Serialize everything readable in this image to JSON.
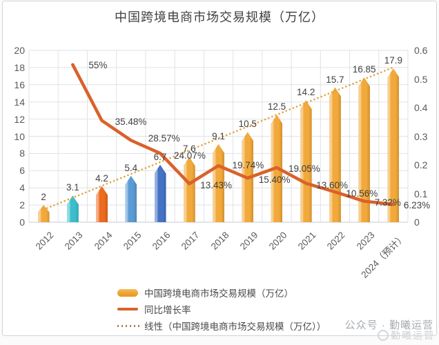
{
  "title": "中国跨境电商市场交易规模（万亿）",
  "watermark": {
    "primary": "公众号 · 勤曦运营",
    "secondary": "勤曦运营"
  },
  "colors": {
    "growth_line": "#D9622B",
    "trend_line": "#E3A23C",
    "grid": "#dee2e6",
    "axis_line": "#c3c8cd",
    "axis_text": "#595959",
    "label_text": "#3f3f3f",
    "default_bar": "#F2A93B"
  },
  "legend": [
    {
      "icon": "bar",
      "label": "中国跨境电商市场交易规模（万亿）"
    },
    {
      "icon": "line",
      "label": "同比增长率"
    },
    {
      "icon": "dotted",
      "label": "线性（中国跨境电商市场交易规模（万亿））"
    }
  ],
  "chart_data": {
    "type": "bar",
    "title": "中国跨境电商市场交易规模（万亿）",
    "categories": [
      "2012",
      "2013",
      "2014",
      "2015",
      "2016",
      "2017",
      "2018",
      "2019",
      "2020",
      "2021",
      "2022",
      "2023",
      "2024（预计）"
    ],
    "left_axis": {
      "min": 0,
      "max": 20,
      "step": 2,
      "ticks": [
        "0",
        "2",
        "4",
        "6",
        "8",
        "10",
        "12",
        "14",
        "16",
        "18",
        "20"
      ]
    },
    "right_axis": {
      "min": 0,
      "max": 0.6,
      "step": 0.1,
      "ticks": [
        "0",
        "0.1",
        "0.2",
        "0.3",
        "0.4",
        "0.5",
        "0.6"
      ]
    },
    "grid": true,
    "legend_position": "bottom-left",
    "series": [
      {
        "name": "中国跨境电商市场交易规模（万亿）",
        "type": "bar",
        "axis": "left",
        "values": [
          2,
          3.1,
          4.2,
          5.4,
          6.7,
          7.6,
          9.1,
          10.5,
          12.5,
          14.2,
          15.7,
          16.85,
          17.9
        ],
        "labels": [
          "2",
          "3.1",
          "4.2",
          "5.4",
          "6.7",
          "7.6",
          "9.1",
          "10.5",
          "12.5",
          "14.2",
          "15.7",
          "16.85",
          "17.9"
        ],
        "bar_colors": [
          "#F2A93B",
          "#3BBECB",
          "#EC6B1F",
          "#5B9BD5",
          "#4472C4",
          "#F2A93B",
          "#F2A93B",
          "#F2A93B",
          "#F2A93B",
          "#F2A93B",
          "#F2A93B",
          "#F2A93B",
          "#F2A93B"
        ]
      },
      {
        "name": "同比增长率",
        "type": "line",
        "axis": "right",
        "values": [
          null,
          0.55,
          0.3548,
          0.2857,
          0.2407,
          0.1343,
          0.1974,
          0.154,
          0.1905,
          0.136,
          0.1056,
          0.0732,
          0.0623
        ],
        "labels": [
          null,
          "55%",
          "35.48%",
          "28.57%",
          "24.07%",
          "13.43%",
          "19.74%",
          "15.40%",
          "19.05%",
          "13.60%",
          "10.56%",
          "7.32%",
          "6.23%"
        ]
      },
      {
        "name": "线性（中国跨境电商市场交易规模（万亿））",
        "type": "trendline",
        "axis": "left",
        "endpoints": [
          1.47,
          18.03
        ]
      }
    ]
  }
}
